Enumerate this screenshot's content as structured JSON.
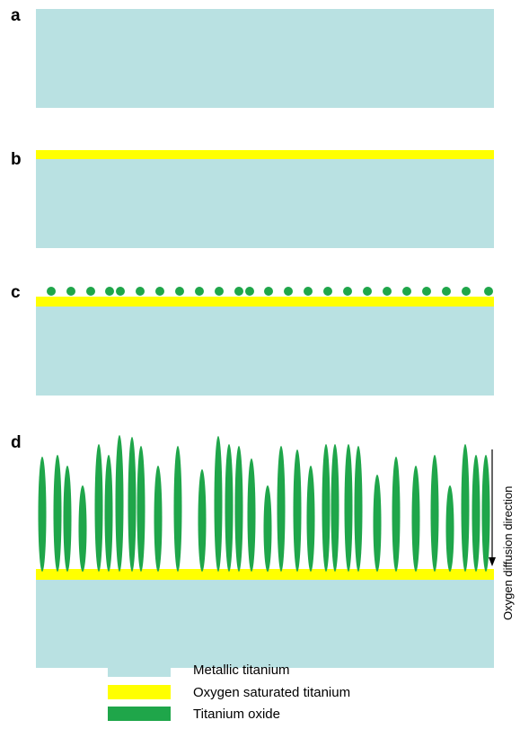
{
  "panels": [
    {
      "label": "a"
    },
    {
      "label": "b"
    },
    {
      "label": "c"
    },
    {
      "label": "d"
    }
  ],
  "annotation": "Oxygen diffusion direction",
  "legend": [
    {
      "label": "Metallic titanium"
    },
    {
      "label": "Oxygen saturated titanium"
    },
    {
      "label": "Titanium oxide"
    }
  ]
}
